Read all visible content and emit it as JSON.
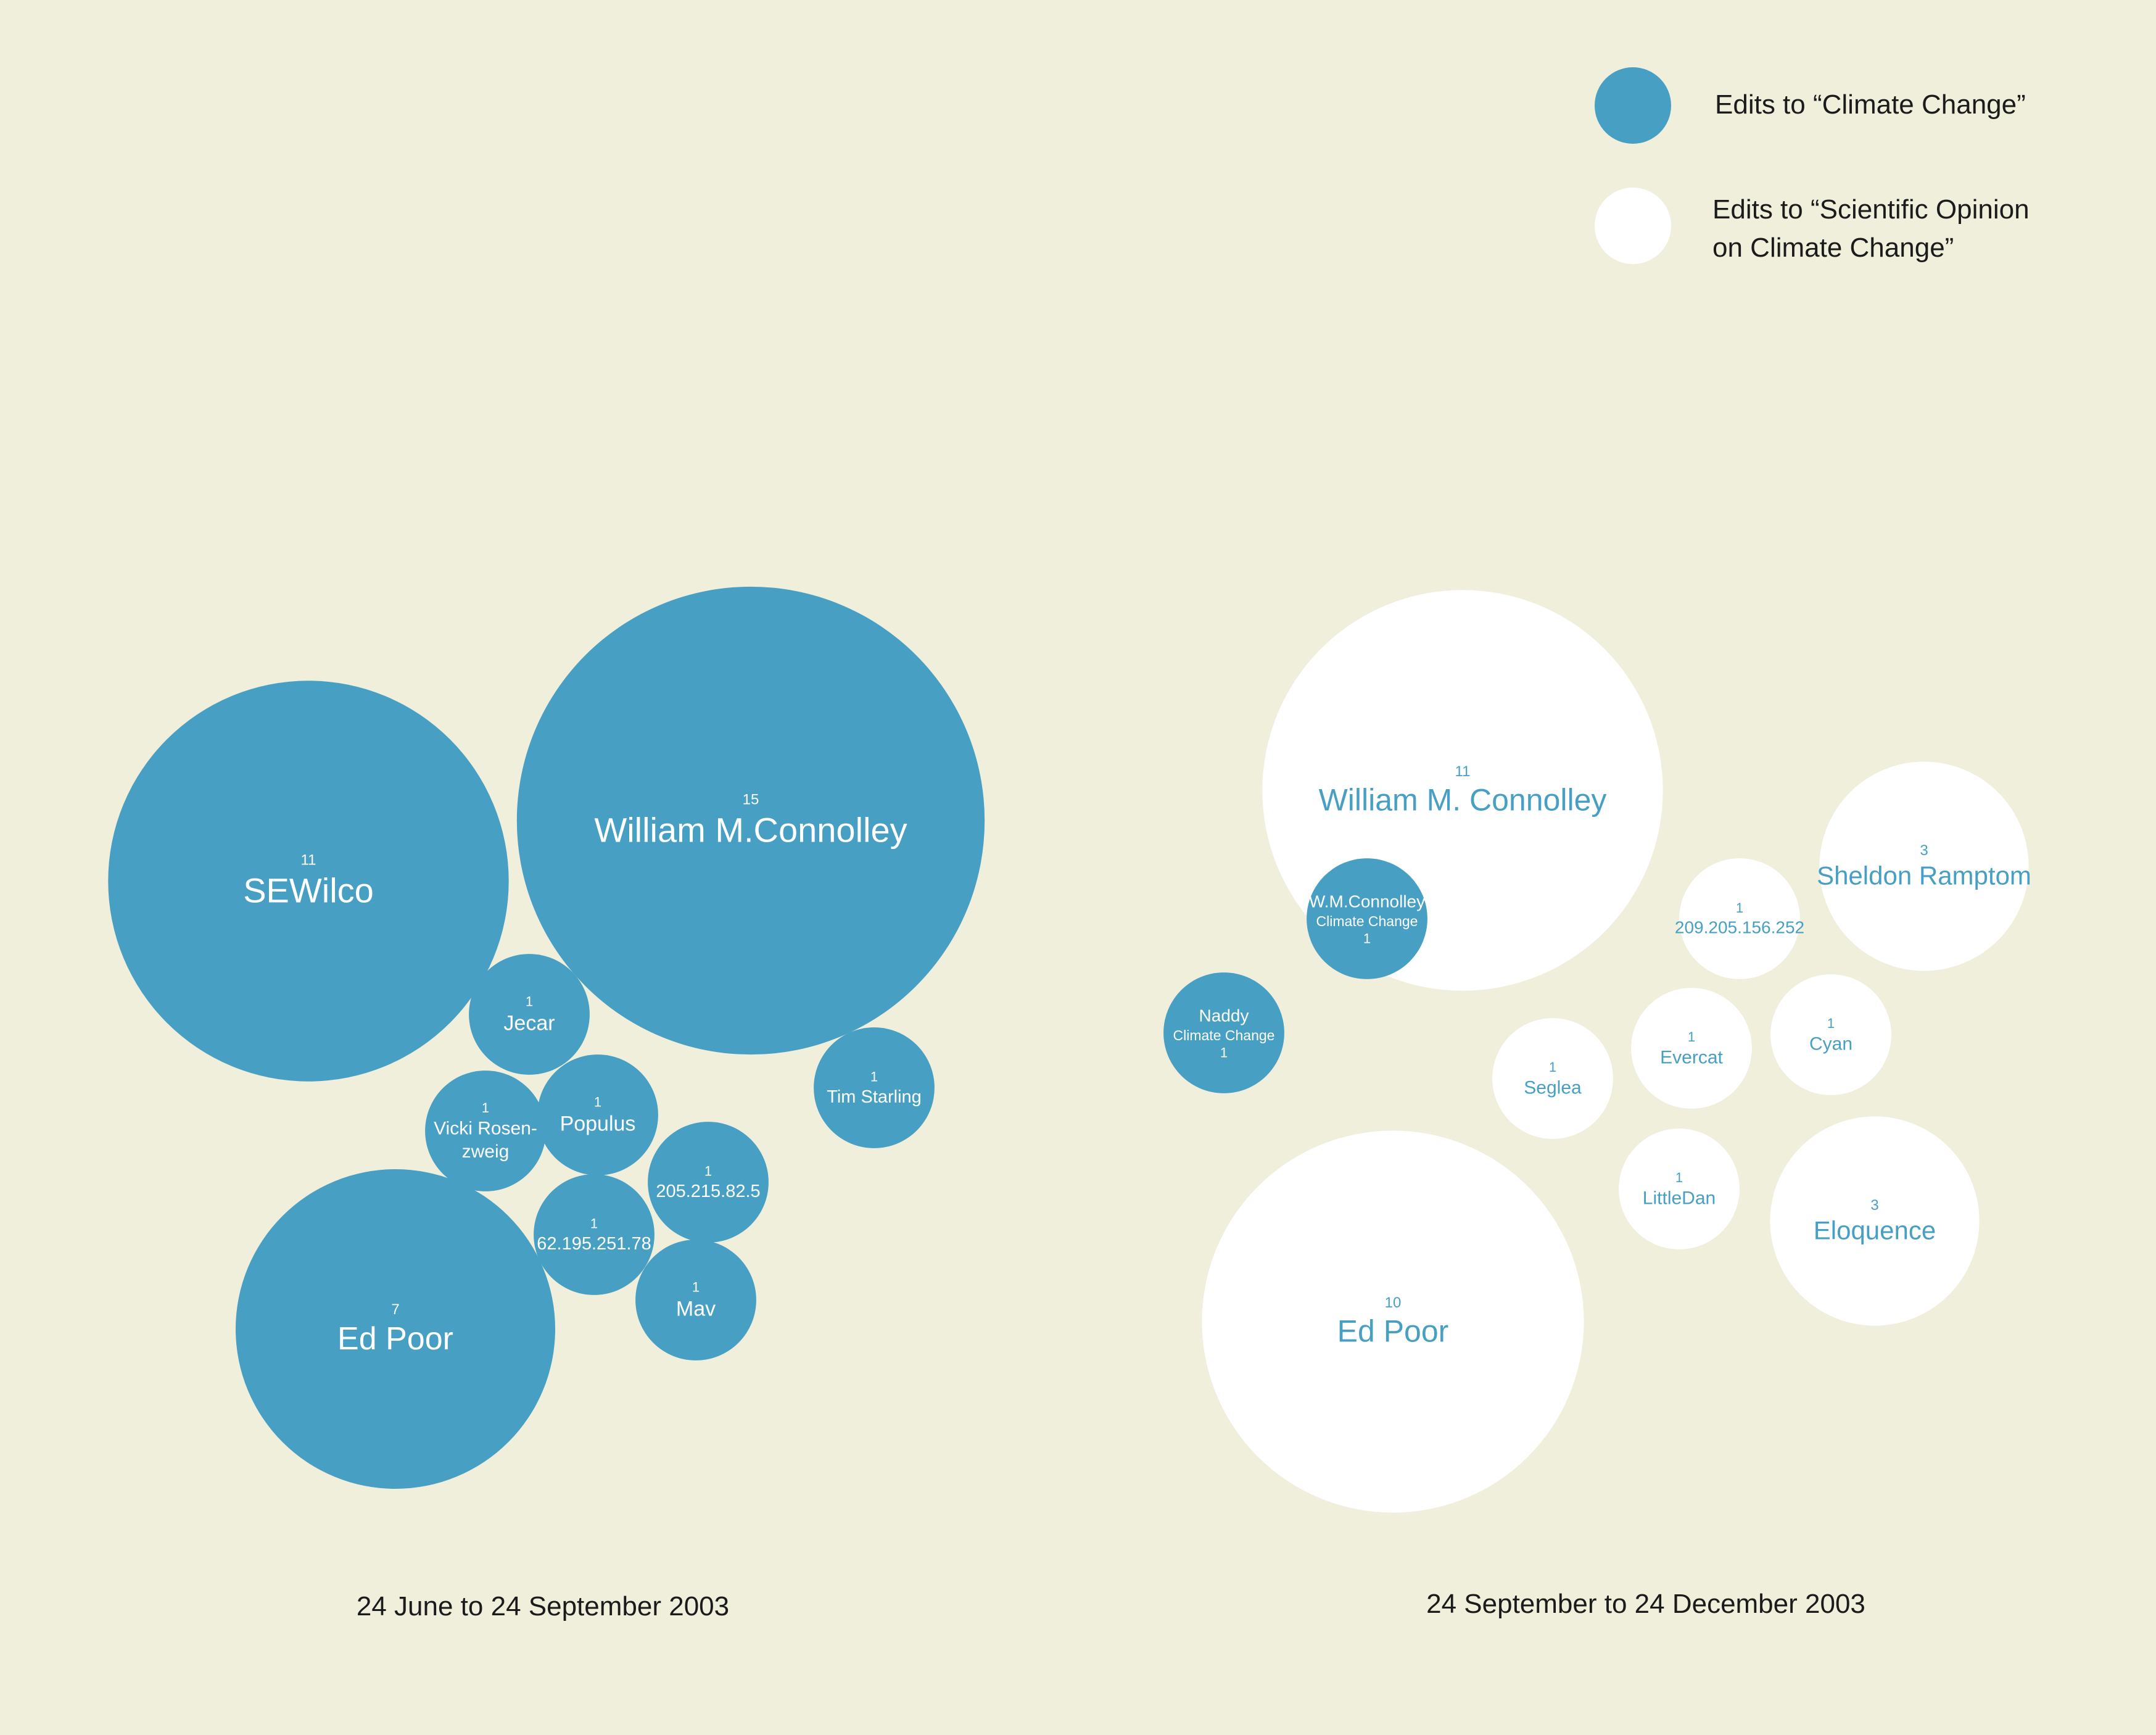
{
  "chart_data": {
    "type": "bubble",
    "colors": {
      "climate_change": "#479fc4",
      "scientific_opinion": "#ffffff",
      "background": "#f0efdc"
    },
    "legend": {
      "placement": "top-right",
      "items": [
        {
          "key": "climate_change",
          "label": "Edits to “Climate Change”"
        },
        {
          "key": "scientific_opinion",
          "label_lines": [
            "Edits to “Scientific Opinion",
            "on Climate Change”"
          ]
        }
      ]
    },
    "panels": [
      {
        "caption": "24 June to 24 September 2003",
        "bubbles": [
          {
            "name": "SEWilco",
            "value": 11,
            "count_label": "11",
            "series": "climate_change"
          },
          {
            "name": "William M.Connolley",
            "value": 15,
            "count_label": "15",
            "series": "climate_change"
          },
          {
            "name": "Jecar",
            "value": 1,
            "count_label": "1",
            "series": "climate_change"
          },
          {
            "name_lines": [
              "Vicki Rosen-",
              "zweig"
            ],
            "value": 1,
            "count_label": "1",
            "series": "climate_change"
          },
          {
            "name": "Populus",
            "value": 1,
            "count_label": "1",
            "series": "climate_change"
          },
          {
            "name": "Tim Starling",
            "value": 1,
            "count_label": "1",
            "series": "climate_change"
          },
          {
            "name": "205.215.82.5",
            "value": 1,
            "count_label": "1",
            "series": "climate_change"
          },
          {
            "name": "62.195.251.78",
            "value": 1,
            "count_label": "1",
            "series": "climate_change"
          },
          {
            "name": "Mav",
            "value": 1,
            "count_label": "1",
            "series": "climate_change"
          },
          {
            "name": "Ed Poor",
            "value": 7,
            "count_label": "7",
            "series": "climate_change"
          }
        ]
      },
      {
        "caption": "24 September to 24 December 2003",
        "bubbles": [
          {
            "name": "William M. Connolley",
            "value": 11,
            "count_label": "11",
            "series": "scientific_opinion"
          },
          {
            "name": "W.M.Connolley",
            "sub": "Climate Change",
            "value": 1,
            "count_label": "1",
            "series": "climate_change"
          },
          {
            "name": "Naddy",
            "sub": "Climate Change",
            "value": 1,
            "count_label": "1",
            "series": "climate_change"
          },
          {
            "name": "Seglea",
            "value": 1,
            "count_label": "1",
            "series": "scientific_opinion"
          },
          {
            "name": "Evercat",
            "value": 1,
            "count_label": "1",
            "series": "scientific_opinion"
          },
          {
            "name": "209.205.156.252",
            "value": 1,
            "count_label": "1",
            "series": "scientific_opinion"
          },
          {
            "name": "Cyan",
            "value": 1,
            "count_label": "1",
            "series": "scientific_opinion"
          },
          {
            "name": "Sheldon Ramptom",
            "value": 3,
            "count_label": "3",
            "series": "scientific_opinion"
          },
          {
            "name": "LittleDan",
            "value": 1,
            "count_label": "1",
            "series": "scientific_opinion"
          },
          {
            "name": "Eloquence",
            "value": 3,
            "count_label": "3",
            "series": "scientific_opinion"
          },
          {
            "name": "Ed Poor",
            "value": 10,
            "count_label": "10",
            "series": "scientific_opinion"
          }
        ]
      }
    ]
  }
}
